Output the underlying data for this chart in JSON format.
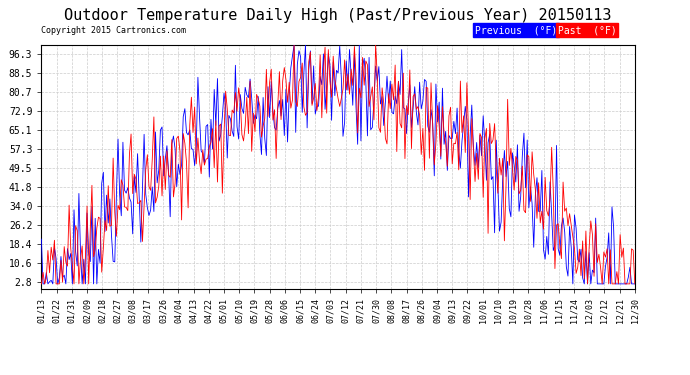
{
  "title": "Outdoor Temperature Daily High (Past/Previous Year) 20150113",
  "copyright": "Copyright 2015 Cartronics.com",
  "ylabel_ticks": [
    2.8,
    10.6,
    18.4,
    26.2,
    34.0,
    41.8,
    49.5,
    57.3,
    65.1,
    72.9,
    80.7,
    88.5,
    96.3
  ],
  "xtick_labels": [
    "01/13",
    "01/22",
    "01/31",
    "02/09",
    "02/18",
    "02/27",
    "03/08",
    "03/17",
    "03/26",
    "04/04",
    "04/13",
    "04/22",
    "05/01",
    "05/10",
    "05/19",
    "05/28",
    "06/06",
    "06/15",
    "06/24",
    "07/03",
    "07/12",
    "07/21",
    "07/30",
    "08/08",
    "08/17",
    "08/26",
    "09/04",
    "09/13",
    "09/22",
    "10/01",
    "10/10",
    "10/19",
    "10/28",
    "11/06",
    "11/15",
    "11/24",
    "12/03",
    "12/12",
    "12/21",
    "12/30"
  ],
  "legend_blue_label": "Previous  (°F)",
  "legend_red_label": "Past  (°F)",
  "bg_color": "#ffffff",
  "grid_color": "#cccccc",
  "title_fontsize": 11,
  "line_blue": "#0000ff",
  "line_red": "#ff0000",
  "ylim_low": 0,
  "ylim_high": 100
}
